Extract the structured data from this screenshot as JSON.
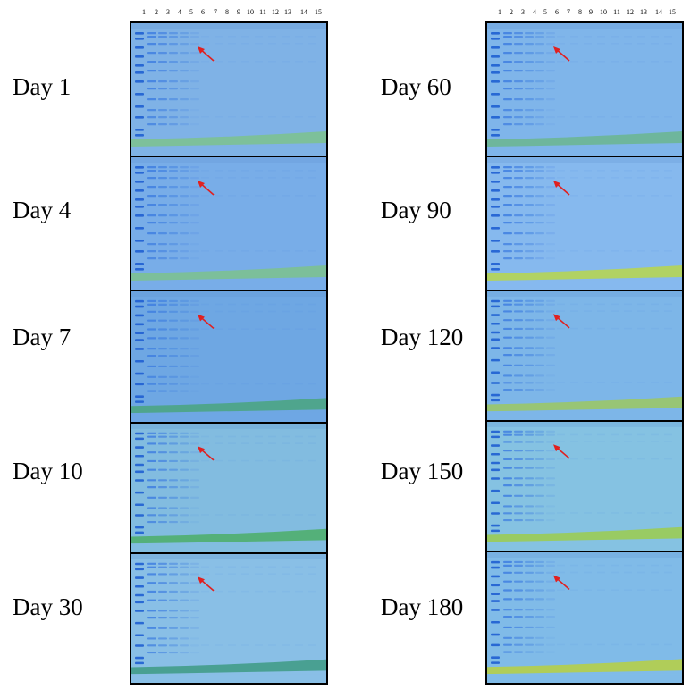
{
  "lane_numbers": [
    "1",
    "2",
    "3",
    "4",
    "5",
    "6",
    "7",
    "8",
    "9",
    "10",
    "11",
    "12",
    "13",
    "14",
    "15"
  ],
  "left_column": {
    "panels": [
      {
        "label": "Day 1",
        "gel_color": "#7fb2e6",
        "dye_front_color": "#7cc28c"
      },
      {
        "label": "Day 4",
        "gel_color": "#78ade8",
        "dye_front_color": "#7cc28c"
      },
      {
        "label": "Day 7",
        "gel_color": "#6ea7e3",
        "dye_front_color": "#4aa57e"
      },
      {
        "label": "Day 10",
        "gel_color": "#82bce0",
        "dye_front_color": "#4cae66"
      },
      {
        "label": "Day 30",
        "gel_color": "#89bfe6",
        "dye_front_color": "#3e9a82"
      }
    ]
  },
  "right_column": {
    "panels": [
      {
        "label": "Day 60",
        "gel_color": "#7fb5ea",
        "dye_front_color": "#6bb68e"
      },
      {
        "label": "Day 90",
        "gel_color": "#86b9ee",
        "dye_front_color": "#b9d64a"
      },
      {
        "label": "Day 120",
        "gel_color": "#7db6e8",
        "dye_front_color": "#9cc860"
      },
      {
        "label": "Day 150",
        "gel_color": "#85c2e2",
        "dye_front_color": "#9ccc4c"
      },
      {
        "label": "Day 180",
        "gel_color": "#80bbe8",
        "dye_front_color": "#b8d040"
      }
    ]
  },
  "colors": {
    "marker_band": "#1f5fd1",
    "sample_band": "#3f7fe0",
    "arrow": "#e02020"
  }
}
